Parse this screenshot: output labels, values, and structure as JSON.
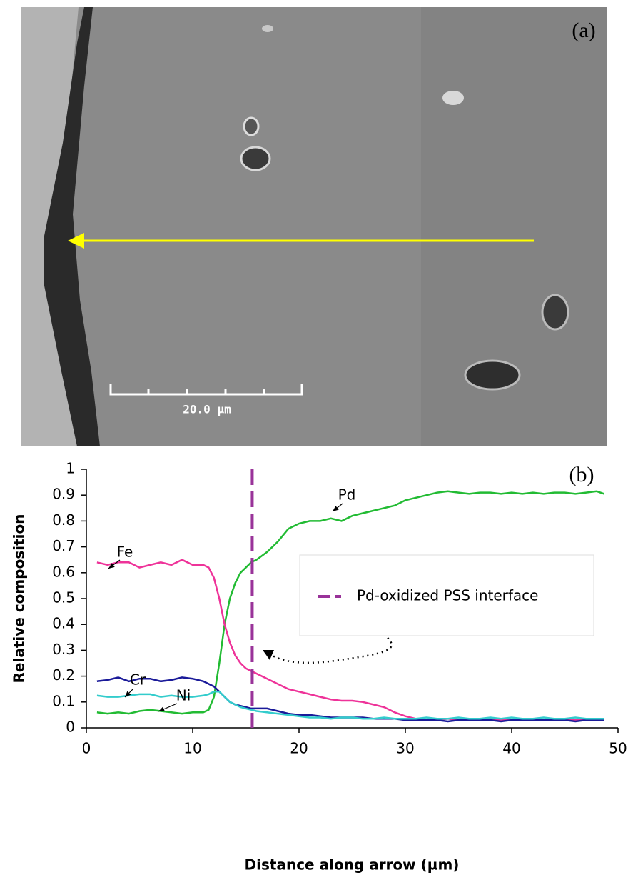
{
  "image": {
    "label": "(a)",
    "scale_bar": "20.0 µm"
  },
  "chart_data": {
    "type": "line",
    "label": "(b)",
    "ylabel": "Relative composition",
    "xlabel": "Distance along arrow (µm)",
    "xlim": [
      0,
      50
    ],
    "xticks": [
      0,
      10,
      20,
      30,
      40,
      50
    ],
    "ylim": [
      0,
      1
    ],
    "yticks": [
      0,
      0.1,
      0.2,
      0.3,
      0.4,
      0.5,
      0.6,
      0.7,
      0.8,
      0.9,
      1
    ],
    "x": [
      1,
      2,
      3,
      4,
      5,
      6,
      7,
      8,
      9,
      10,
      11,
      11.5,
      12,
      12.5,
      13,
      13.5,
      14,
      14.5,
      15,
      15.5,
      16,
      17,
      18,
      19,
      20,
      21,
      22,
      23,
      24,
      25,
      26,
      27,
      28,
      29,
      30,
      31,
      32,
      33,
      34,
      35,
      36,
      37,
      38,
      39,
      40,
      41,
      42,
      43,
      44,
      45,
      46,
      47,
      48,
      48.7
    ],
    "series": [
      {
        "name": "Pd",
        "color": "#22bb33",
        "values": [
          0.06,
          0.055,
          0.06,
          0.055,
          0.065,
          0.07,
          0.065,
          0.06,
          0.055,
          0.06,
          0.06,
          0.07,
          0.12,
          0.25,
          0.4,
          0.5,
          0.56,
          0.6,
          0.62,
          0.64,
          0.65,
          0.68,
          0.72,
          0.77,
          0.79,
          0.8,
          0.8,
          0.81,
          0.8,
          0.82,
          0.83,
          0.84,
          0.85,
          0.86,
          0.88,
          0.89,
          0.9,
          0.91,
          0.915,
          0.91,
          0.905,
          0.91,
          0.91,
          0.905,
          0.91,
          0.905,
          0.91,
          0.905,
          0.91,
          0.91,
          0.905,
          0.91,
          0.915,
          0.905
        ]
      },
      {
        "name": "Fe",
        "color": "#ee3399",
        "values": [
          0.64,
          0.63,
          0.64,
          0.64,
          0.62,
          0.63,
          0.64,
          0.63,
          0.65,
          0.63,
          0.63,
          0.62,
          0.58,
          0.5,
          0.4,
          0.33,
          0.28,
          0.25,
          0.23,
          0.22,
          0.21,
          0.19,
          0.17,
          0.15,
          0.14,
          0.13,
          0.12,
          0.11,
          0.105,
          0.105,
          0.1,
          0.09,
          0.08,
          0.06,
          0.045,
          0.035,
          0.03,
          0.03,
          0.035,
          0.03,
          0.03,
          0.03,
          0.035,
          0.03,
          0.03,
          0.03,
          0.035,
          0.03,
          0.03,
          0.035,
          0.03,
          0.03,
          0.03,
          0.035
        ]
      },
      {
        "name": "Cr",
        "color": "#1a1a99",
        "values": [
          0.18,
          0.185,
          0.195,
          0.18,
          0.19,
          0.19,
          0.18,
          0.185,
          0.195,
          0.19,
          0.18,
          0.17,
          0.16,
          0.14,
          0.12,
          0.1,
          0.09,
          0.085,
          0.08,
          0.075,
          0.075,
          0.075,
          0.065,
          0.055,
          0.05,
          0.05,
          0.045,
          0.04,
          0.04,
          0.04,
          0.04,
          0.035,
          0.035,
          0.035,
          0.03,
          0.03,
          0.03,
          0.03,
          0.025,
          0.03,
          0.03,
          0.03,
          0.03,
          0.025,
          0.03,
          0.03,
          0.03,
          0.03,
          0.03,
          0.03,
          0.025,
          0.03,
          0.03,
          0.03
        ]
      },
      {
        "name": "Ni",
        "color": "#33cccc",
        "values": [
          0.125,
          0.12,
          0.12,
          0.125,
          0.13,
          0.13,
          0.12,
          0.125,
          0.12,
          0.12,
          0.125,
          0.13,
          0.14,
          0.14,
          0.12,
          0.1,
          0.09,
          0.08,
          0.075,
          0.07,
          0.065,
          0.06,
          0.055,
          0.05,
          0.045,
          0.04,
          0.04,
          0.035,
          0.04,
          0.04,
          0.035,
          0.035,
          0.04,
          0.035,
          0.035,
          0.035,
          0.04,
          0.035,
          0.035,
          0.04,
          0.035,
          0.035,
          0.04,
          0.035,
          0.04,
          0.035,
          0.035,
          0.04,
          0.035,
          0.035,
          0.04,
          0.035,
          0.035,
          0.035
        ]
      }
    ],
    "vlines": [
      {
        "name": "Pd-oxidized PSS interface",
        "x": 15.6,
        "color": "#993399"
      }
    ]
  }
}
